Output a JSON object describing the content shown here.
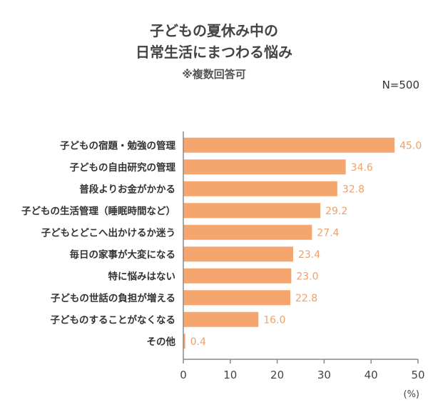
{
  "chart_data": {
    "type": "bar",
    "orientation": "horizontal",
    "title_lines": [
      "子どもの夏休み中の",
      "日常生活にまつわる悩み"
    ],
    "subtitle": "※複数回答可",
    "sample_note": "N=500",
    "unit_label": "(%)",
    "categories": [
      "子どもの宿題・勉強の管理",
      "子どもの自由研究の管理",
      "普段よりお金がかかる",
      "子どもの生活管理（睡眠時間など）",
      "子どもとどこへ出かけるか迷う",
      "毎日の家事が大変になる",
      "特に悩みはない",
      "子どもの世話の負担が増える",
      "子どものすることがなくなる",
      "その他"
    ],
    "values": [
      45.0,
      34.6,
      32.8,
      29.2,
      27.4,
      23.4,
      23.0,
      22.8,
      16.0,
      0.4
    ],
    "value_labels": [
      "45.0",
      "34.6",
      "32.8",
      "29.2",
      "27.4",
      "23.4",
      "23.0",
      "22.8",
      "16.0",
      "0.4"
    ],
    "xlim": [
      0,
      50
    ],
    "xticks": [
      "0",
      "10",
      "20",
      "30",
      "40",
      "50"
    ],
    "bar_color": "#f5a66e",
    "label_color": "#f0a06a",
    "axis_color": "#888888",
    "grid": false
  }
}
